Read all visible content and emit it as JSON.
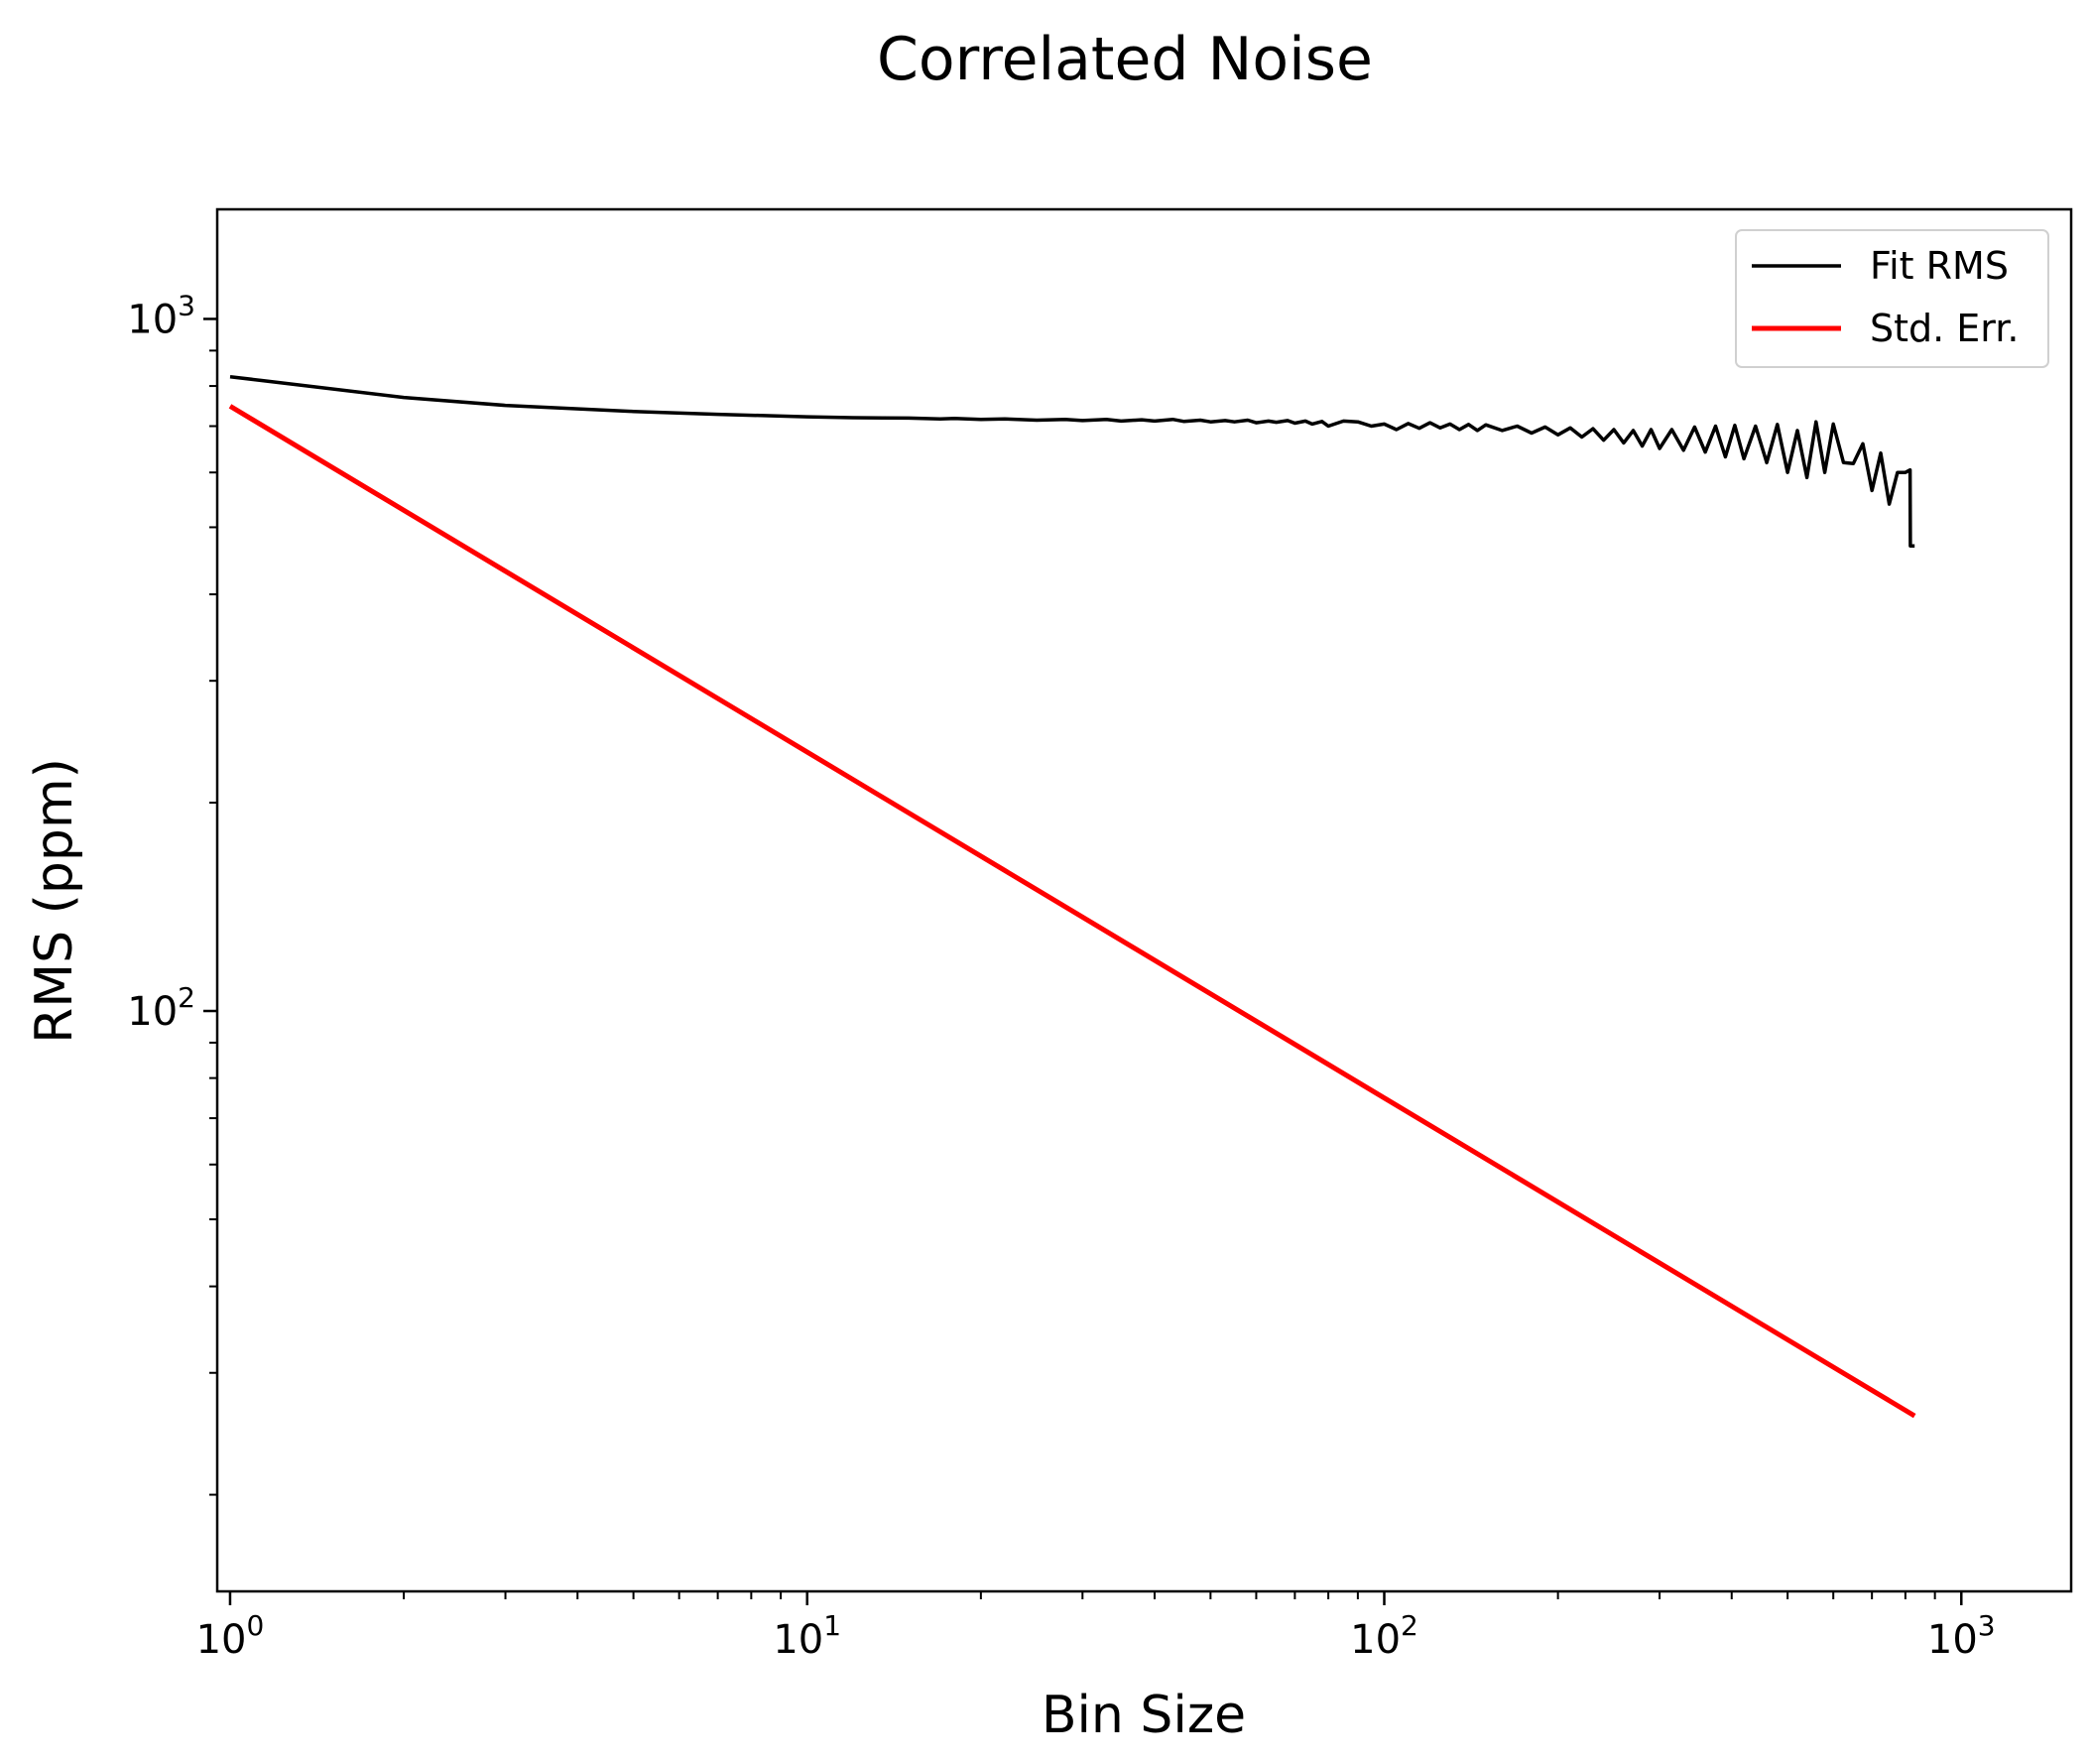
{
  "chart_data": {
    "type": "line",
    "title": "Correlated Noise",
    "xlabel": "Bin Size",
    "ylabel": "RMS (ppm)",
    "xscale": "log",
    "yscale": "log",
    "xlim": [
      0.95,
      1550
    ],
    "ylim": [
      14.5,
      1440
    ],
    "xticks": [
      {
        "base": "10",
        "exp": "0",
        "value": 1
      },
      {
        "base": "10",
        "exp": "1",
        "value": 10
      },
      {
        "base": "10",
        "exp": "2",
        "value": 100
      },
      {
        "base": "10",
        "exp": "3",
        "value": 1000
      }
    ],
    "yticks": [
      {
        "base": "10",
        "exp": "2",
        "value": 100
      },
      {
        "base": "10",
        "exp": "3",
        "value": 1000
      }
    ],
    "grid": false,
    "legend_position": "top-right",
    "series": [
      {
        "name": "Fit RMS",
        "color": "#000000",
        "x": [
          1,
          2,
          3,
          5,
          7,
          10,
          12,
          15,
          17,
          18,
          20,
          22,
          25,
          28,
          30,
          33,
          35,
          38,
          40,
          43,
          45,
          48,
          50,
          53,
          55,
          58,
          60,
          63,
          65,
          68,
          70,
          73,
          75,
          78,
          80,
          85,
          90,
          95,
          100,
          105,
          110,
          115,
          120,
          125,
          130,
          135,
          140,
          145,
          150,
          160,
          170,
          180,
          190,
          200,
          210,
          220,
          230,
          240,
          250,
          260,
          270,
          280,
          290,
          300,
          315,
          330,
          345,
          360,
          375,
          390,
          405,
          420,
          440,
          460,
          480,
          500,
          520,
          540,
          560,
          580,
          600,
          625,
          650,
          675,
          700,
          725,
          750,
          775,
          800,
          815,
          816,
          830
        ],
        "values": [
          825,
          770,
          750,
          735,
          728,
          722,
          720,
          719,
          717,
          718,
          716,
          717,
          714,
          716,
          713,
          716,
          712,
          715,
          712,
          716,
          711,
          714,
          710,
          713,
          710,
          714,
          708,
          712,
          709,
          713,
          707,
          712,
          705,
          711,
          700,
          712,
          710,
          700,
          705,
          692,
          706,
          695,
          708,
          696,
          705,
          692,
          704,
          690,
          703,
          690,
          700,
          684,
          698,
          680,
          696,
          675,
          694,
          668,
          692,
          662,
          690,
          655,
          692,
          650,
          692,
          646,
          698,
          642,
          700,
          632,
          702,
          628,
          700,
          620,
          704,
          600,
          690,
          590,
          710,
          600,
          705,
          620,
          618,
          660,
          565,
          640,
          540,
          600,
          600,
          605,
          470,
          470
        ]
      },
      {
        "name": "Std. Err.",
        "color": "#ff0000",
        "x": [
          1,
          830
        ],
        "values": [
          748,
          26.0
        ]
      }
    ]
  }
}
